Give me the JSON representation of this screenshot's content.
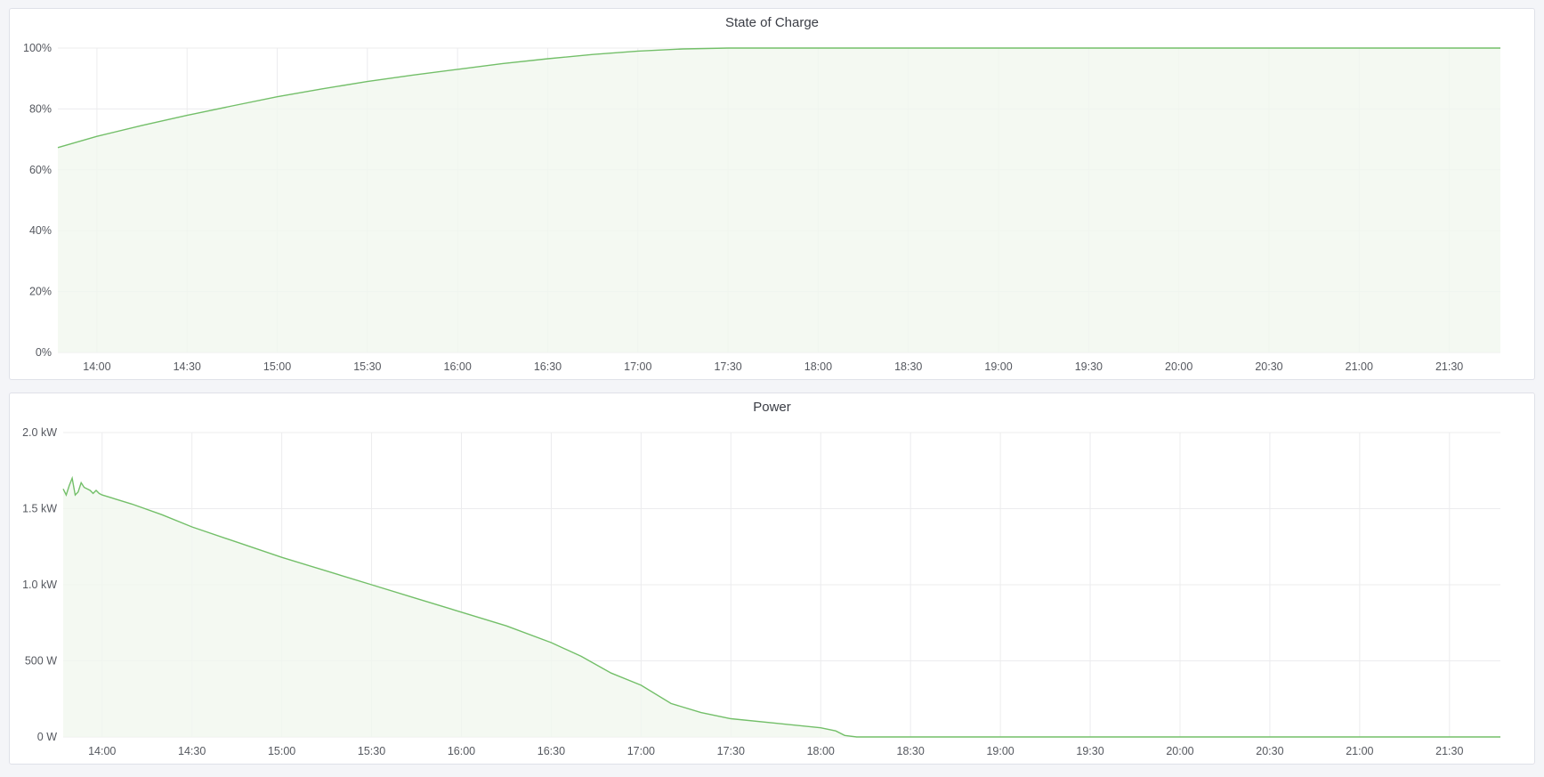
{
  "chart_data": [
    {
      "type": "area",
      "title": "State of Charge",
      "x_range": [
        "13:47",
        "21:47"
      ],
      "x_ticks": [
        "14:00",
        "14:30",
        "15:00",
        "15:30",
        "16:00",
        "16:30",
        "17:00",
        "17:30",
        "18:00",
        "18:30",
        "19:00",
        "19:30",
        "20:00",
        "20:30",
        "21:00",
        "21:30"
      ],
      "y_range": [
        0,
        100
      ],
      "y_ticks": [
        0,
        20,
        40,
        60,
        80,
        100
      ],
      "y_tick_labels": [
        "0%",
        "20%",
        "40%",
        "60%",
        "80%",
        "100%"
      ],
      "grid": true,
      "color": "#73bf69",
      "fill_color": "#f1f7ef",
      "series": [
        {
          "x": [
            "13:47",
            "14:00",
            "14:15",
            "14:30",
            "14:45",
            "15:00",
            "15:15",
            "15:30",
            "15:45",
            "16:00",
            "16:15",
            "16:30",
            "16:45",
            "17:00",
            "17:15",
            "17:30",
            "18:00",
            "21:47"
          ],
          "y": [
            67.3,
            71,
            74.6,
            77.9,
            81,
            84,
            86.6,
            89,
            91.1,
            93,
            94.9,
            96.5,
            97.9,
            99,
            99.7,
            100,
            100,
            100
          ]
        }
      ]
    },
    {
      "type": "area",
      "title": "Power",
      "x_range": [
        "13:47",
        "21:47"
      ],
      "x_ticks": [
        "14:00",
        "14:30",
        "15:00",
        "15:30",
        "16:00",
        "16:30",
        "17:00",
        "17:30",
        "18:00",
        "18:30",
        "19:00",
        "19:30",
        "20:00",
        "20:30",
        "21:00",
        "21:30"
      ],
      "y_range": [
        0,
        2000
      ],
      "y_ticks": [
        0,
        500,
        1000,
        1500,
        2000
      ],
      "y_tick_labels": [
        "0 W",
        "500 W",
        "1.0 kW",
        "1.5 kW",
        "2.0 kW"
      ],
      "grid": true,
      "color": "#73bf69",
      "fill_color": "#f1f7ef",
      "series": [
        {
          "x": [
            "13:47",
            "13:48",
            "13:49",
            "13:50",
            "13:51",
            "13:52",
            "13:53",
            "13:54",
            "13:55",
            "13:56",
            "13:57",
            "13:58",
            "13:59",
            "14:00",
            "14:10",
            "14:20",
            "14:30",
            "14:45",
            "15:00",
            "15:15",
            "15:30",
            "15:45",
            "16:00",
            "16:15",
            "16:30",
            "16:40",
            "16:50",
            "17:00",
            "17:10",
            "17:20",
            "17:30",
            "17:45",
            "18:00",
            "18:05",
            "18:08",
            "18:12",
            "21:47"
          ],
          "y": [
            1630,
            1590,
            1650,
            1700,
            1590,
            1610,
            1670,
            1640,
            1630,
            1620,
            1600,
            1620,
            1600,
            1590,
            1530,
            1460,
            1380,
            1280,
            1180,
            1090,
            1000,
            910,
            820,
            730,
            620,
            530,
            420,
            340,
            220,
            160,
            120,
            90,
            60,
            40,
            10,
            0,
            0
          ]
        }
      ]
    }
  ]
}
